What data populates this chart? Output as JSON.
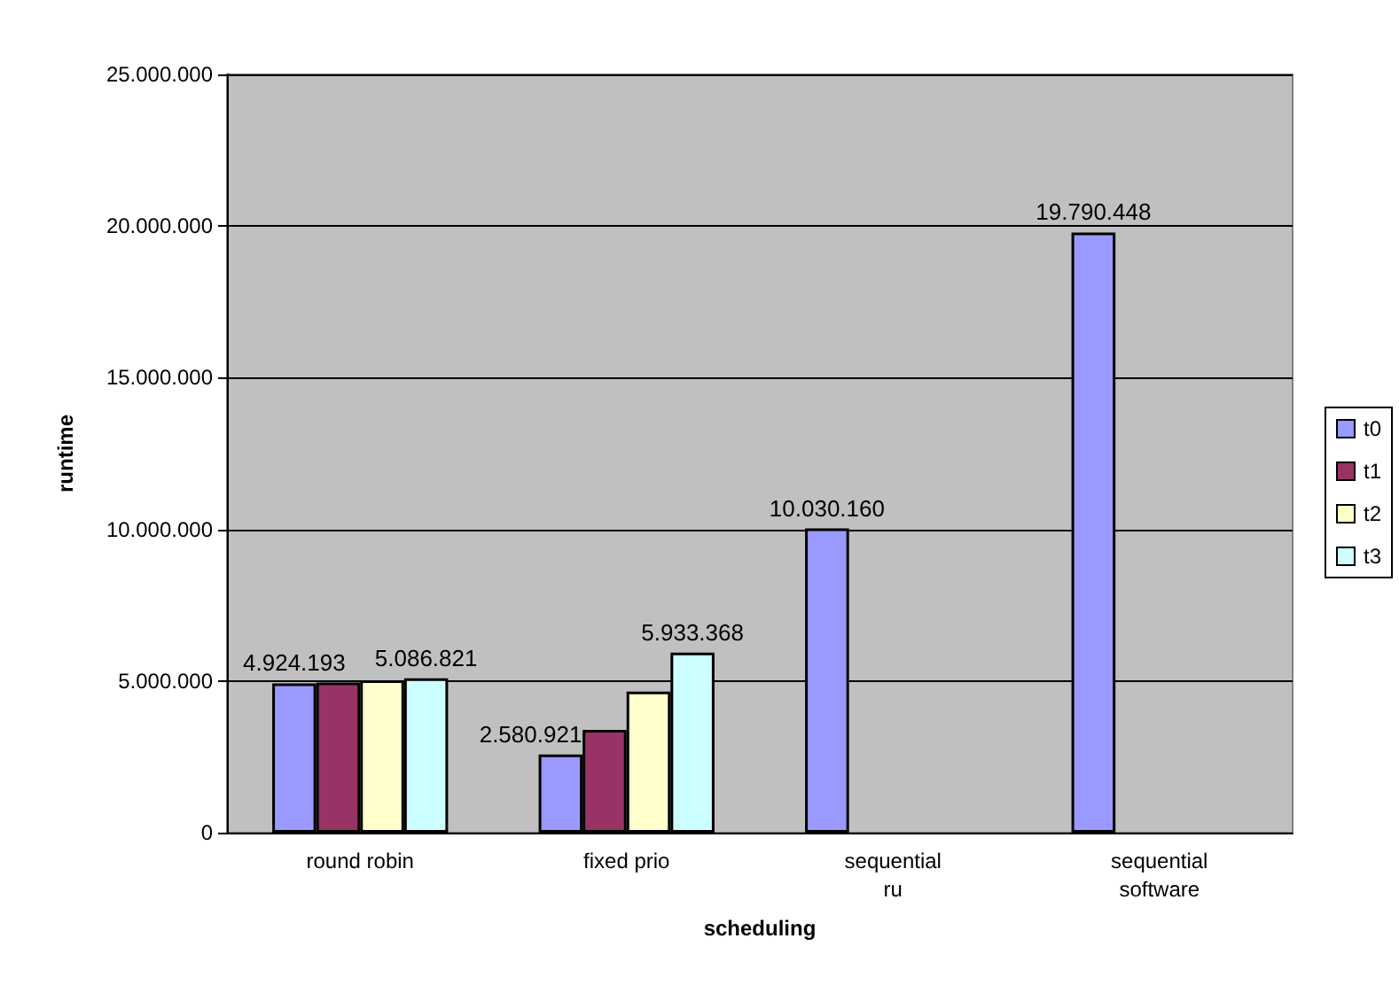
{
  "chart_data": {
    "type": "bar",
    "xlabel": "scheduling",
    "ylabel": "runtime",
    "categories": [
      "round robin",
      "fixed prio",
      "sequential\nru",
      "sequential\nsoftware"
    ],
    "series": [
      {
        "name": "t0",
        "color": "#9999ff",
        "values": [
          4924193,
          2580921,
          10030160,
          19790448
        ],
        "value_labels": [
          "4.924.193",
          "2.580.921",
          "10.030.160",
          "19.790.448"
        ]
      },
      {
        "name": "t1",
        "color": "#993366",
        "values": [
          4950000,
          3390000,
          null,
          null
        ]
      },
      {
        "name": "t2",
        "color": "#ffffcc",
        "values": [
          5020000,
          4650000,
          null,
          null
        ]
      },
      {
        "name": "t3",
        "color": "#ccffff",
        "values": [
          5086821,
          5933368,
          null,
          null
        ],
        "value_labels": [
          "5.086.821",
          "5.933.368",
          null,
          null
        ]
      }
    ],
    "ylim": [
      0,
      25000000
    ],
    "yticks": [
      {
        "value": 0,
        "label": "0"
      },
      {
        "value": 5000000,
        "label": "5.000.000"
      },
      {
        "value": 10000000,
        "label": "10.000.000"
      },
      {
        "value": 15000000,
        "label": "15.000.000"
      },
      {
        "value": 20000000,
        "label": "20.000.000"
      },
      {
        "value": 25000000,
        "label": "25.000.000"
      }
    ],
    "grid": "y",
    "legend": "right"
  }
}
